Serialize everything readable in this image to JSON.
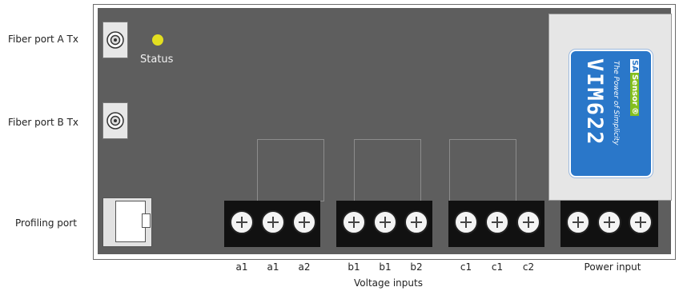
{
  "labels": {
    "fiber_a": "Fiber port A Tx",
    "fiber_b": "Fiber port B Tx",
    "profiling": "Profiling port",
    "status": "Status",
    "power_input": "Power input",
    "voltage_inputs": "Voltage inputs"
  },
  "terminal_labels": [
    "a1",
    "a1",
    "a2",
    "b1",
    "b1",
    "b2",
    "c1",
    "c1",
    "c2"
  ],
  "module": {
    "title": "VIM622",
    "tagline": "The Power of Simplicity",
    "brand_prefix": "SA",
    "brand_name": "Sensor",
    "brand_mark": "®"
  },
  "colors": {
    "board": "#5e5e5e",
    "status_led": "#e3df20",
    "badge_blue": "#2a77c9",
    "brand_green": "#84bf1e"
  }
}
